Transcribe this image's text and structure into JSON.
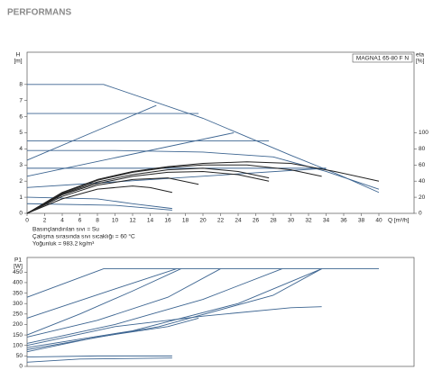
{
  "header": {
    "title": "PERFORMANS"
  },
  "chart_data": [
    {
      "type": "line",
      "annotation": "MAGNA1 65-80 F N",
      "ylabel": [
        "H",
        "[m]"
      ],
      "y2label": [
        "eta",
        "[%]"
      ],
      "xlabel": "Q [m³/h]",
      "notes": [
        "Basınçlandırılan sıvı = Su",
        "Çalışma sırasında sıvı sıcaklığı = 60 °C",
        "Yoğunluk = 983.2 kg/m³"
      ],
      "xlim": [
        0,
        44
      ],
      "xticks": [
        0,
        2,
        4,
        6,
        8,
        10,
        12,
        14,
        16,
        18,
        20,
        22,
        24,
        26,
        28,
        30,
        32,
        34,
        36,
        38,
        40
      ],
      "ylim": [
        0,
        10
      ],
      "yticks": [
        0,
        1,
        2,
        3,
        4,
        5,
        6,
        7,
        8
      ],
      "y2lim": [
        0,
        200
      ],
      "y2ticks": [
        0,
        20,
        40,
        60,
        80,
        100
      ],
      "series": [
        {
          "color": "#3d6591",
          "x": [
            0,
            8.7,
            20,
            30,
            35,
            40
          ],
          "values": [
            8,
            8,
            5.9,
            3.6,
            2.5,
            1.3
          ]
        },
        {
          "color": "#3d6591",
          "x": [
            0,
            19.5
          ],
          "values": [
            6.2,
            6.2
          ]
        },
        {
          "color": "#3d6591",
          "x": [
            0,
            27.5
          ],
          "values": [
            4.5,
            4.5
          ]
        },
        {
          "color": "#3d6591",
          "x": [
            0,
            10,
            20,
            28,
            34,
            40
          ],
          "values": [
            3.9,
            3.9,
            3.8,
            3.5,
            2.6,
            1.5
          ]
        },
        {
          "color": "#3d6591",
          "x": [
            0,
            34
          ],
          "values": [
            2.8,
            2.8
          ]
        },
        {
          "color": "#3d6591",
          "x": [
            0,
            14.7
          ],
          "values": [
            3.3,
            6.7
          ]
        },
        {
          "color": "#3d6591",
          "x": [
            0,
            23.5
          ],
          "values": [
            2.3,
            5.0
          ]
        },
        {
          "color": "#3d6591",
          "x": [
            0,
            34
          ],
          "values": [
            1.6,
            2.8
          ]
        },
        {
          "color": "#3d6591",
          "x": [
            0,
            8,
            12,
            16.5
          ],
          "values": [
            1.0,
            0.9,
            0.6,
            0.3
          ]
        },
        {
          "color": "#3d6591",
          "x": [
            0,
            10,
            16.5
          ],
          "values": [
            0.6,
            0.5,
            0.2
          ]
        },
        {
          "color": "#222222",
          "axis": "y2",
          "x": [
            0,
            4,
            8,
            12,
            16,
            20,
            25,
            30,
            35,
            40
          ],
          "values": [
            0,
            26,
            42,
            52,
            58,
            62,
            64,
            62,
            52,
            40
          ]
        },
        {
          "color": "#222222",
          "axis": "y2",
          "x": [
            0,
            4,
            8,
            12,
            16,
            20,
            25,
            30,
            33.5
          ],
          "values": [
            0,
            25,
            41,
            51,
            57,
            60,
            60,
            54,
            46
          ]
        },
        {
          "color": "#222222",
          "axis": "y2",
          "x": [
            0,
            4,
            8,
            12,
            16,
            20,
            24,
            27.5
          ],
          "values": [
            0,
            24,
            39,
            48,
            54,
            56,
            52,
            44
          ]
        },
        {
          "color": "#222222",
          "axis": "y2",
          "x": [
            0,
            4,
            8,
            12,
            16,
            20,
            24,
            27.5
          ],
          "values": [
            0,
            23,
            37,
            46,
            51,
            52,
            48,
            40
          ]
        },
        {
          "color": "#222222",
          "axis": "y2",
          "x": [
            0,
            4,
            8,
            12,
            16,
            19.5
          ],
          "values": [
            0,
            21,
            35,
            42,
            44,
            36
          ]
        },
        {
          "color": "#222222",
          "axis": "y2",
          "x": [
            0,
            4,
            8,
            12,
            14,
            16.5
          ],
          "values": [
            0,
            18,
            30,
            34,
            32,
            26
          ]
        }
      ]
    },
    {
      "type": "line",
      "ylabel": [
        "P1",
        "[W]"
      ],
      "xlim": [
        0,
        44
      ],
      "ylim": [
        0,
        520
      ],
      "yticks": [
        0,
        50,
        100,
        150,
        200,
        250,
        300,
        350,
        400,
        450
      ],
      "series": [
        {
          "color": "#3d6591",
          "x": [
            0,
            8.7,
            40
          ],
          "values": [
            330,
            466,
            466
          ]
        },
        {
          "color": "#3d6591",
          "x": [
            0,
            5,
            10,
            17
          ],
          "values": [
            230,
            300,
            370,
            466
          ]
        },
        {
          "color": "#3d6591",
          "x": [
            0,
            6,
            12,
            17.5
          ],
          "values": [
            150,
            250,
            360,
            466
          ]
        },
        {
          "color": "#3d6591",
          "x": [
            0,
            8,
            16,
            22
          ],
          "values": [
            140,
            220,
            330,
            466
          ]
        },
        {
          "color": "#3d6591",
          "x": [
            0,
            10,
            20,
            29
          ],
          "values": [
            110,
            200,
            320,
            466
          ]
        },
        {
          "color": "#3d6591",
          "x": [
            0,
            12,
            24,
            33.5
          ],
          "values": [
            90,
            170,
            300,
            466
          ]
        },
        {
          "color": "#3d6591",
          "x": [
            0,
            15,
            28,
            33.5
          ],
          "values": [
            80,
            190,
            340,
            466
          ]
        },
        {
          "color": "#3d6591",
          "x": [
            0,
            10,
            20,
            30,
            33.5
          ],
          "values": [
            100,
            190,
            240,
            280,
            285
          ]
        },
        {
          "color": "#3d6591",
          "x": [
            0,
            8,
            16,
            19.5
          ],
          "values": [
            70,
            140,
            190,
            230
          ]
        },
        {
          "color": "#3d6591",
          "x": [
            0,
            8,
            16.5
          ],
          "values": [
            45,
            50,
            50
          ]
        },
        {
          "color": "#3d6591",
          "x": [
            0,
            6,
            16.5
          ],
          "values": [
            20,
            35,
            40
          ]
        }
      ]
    }
  ]
}
